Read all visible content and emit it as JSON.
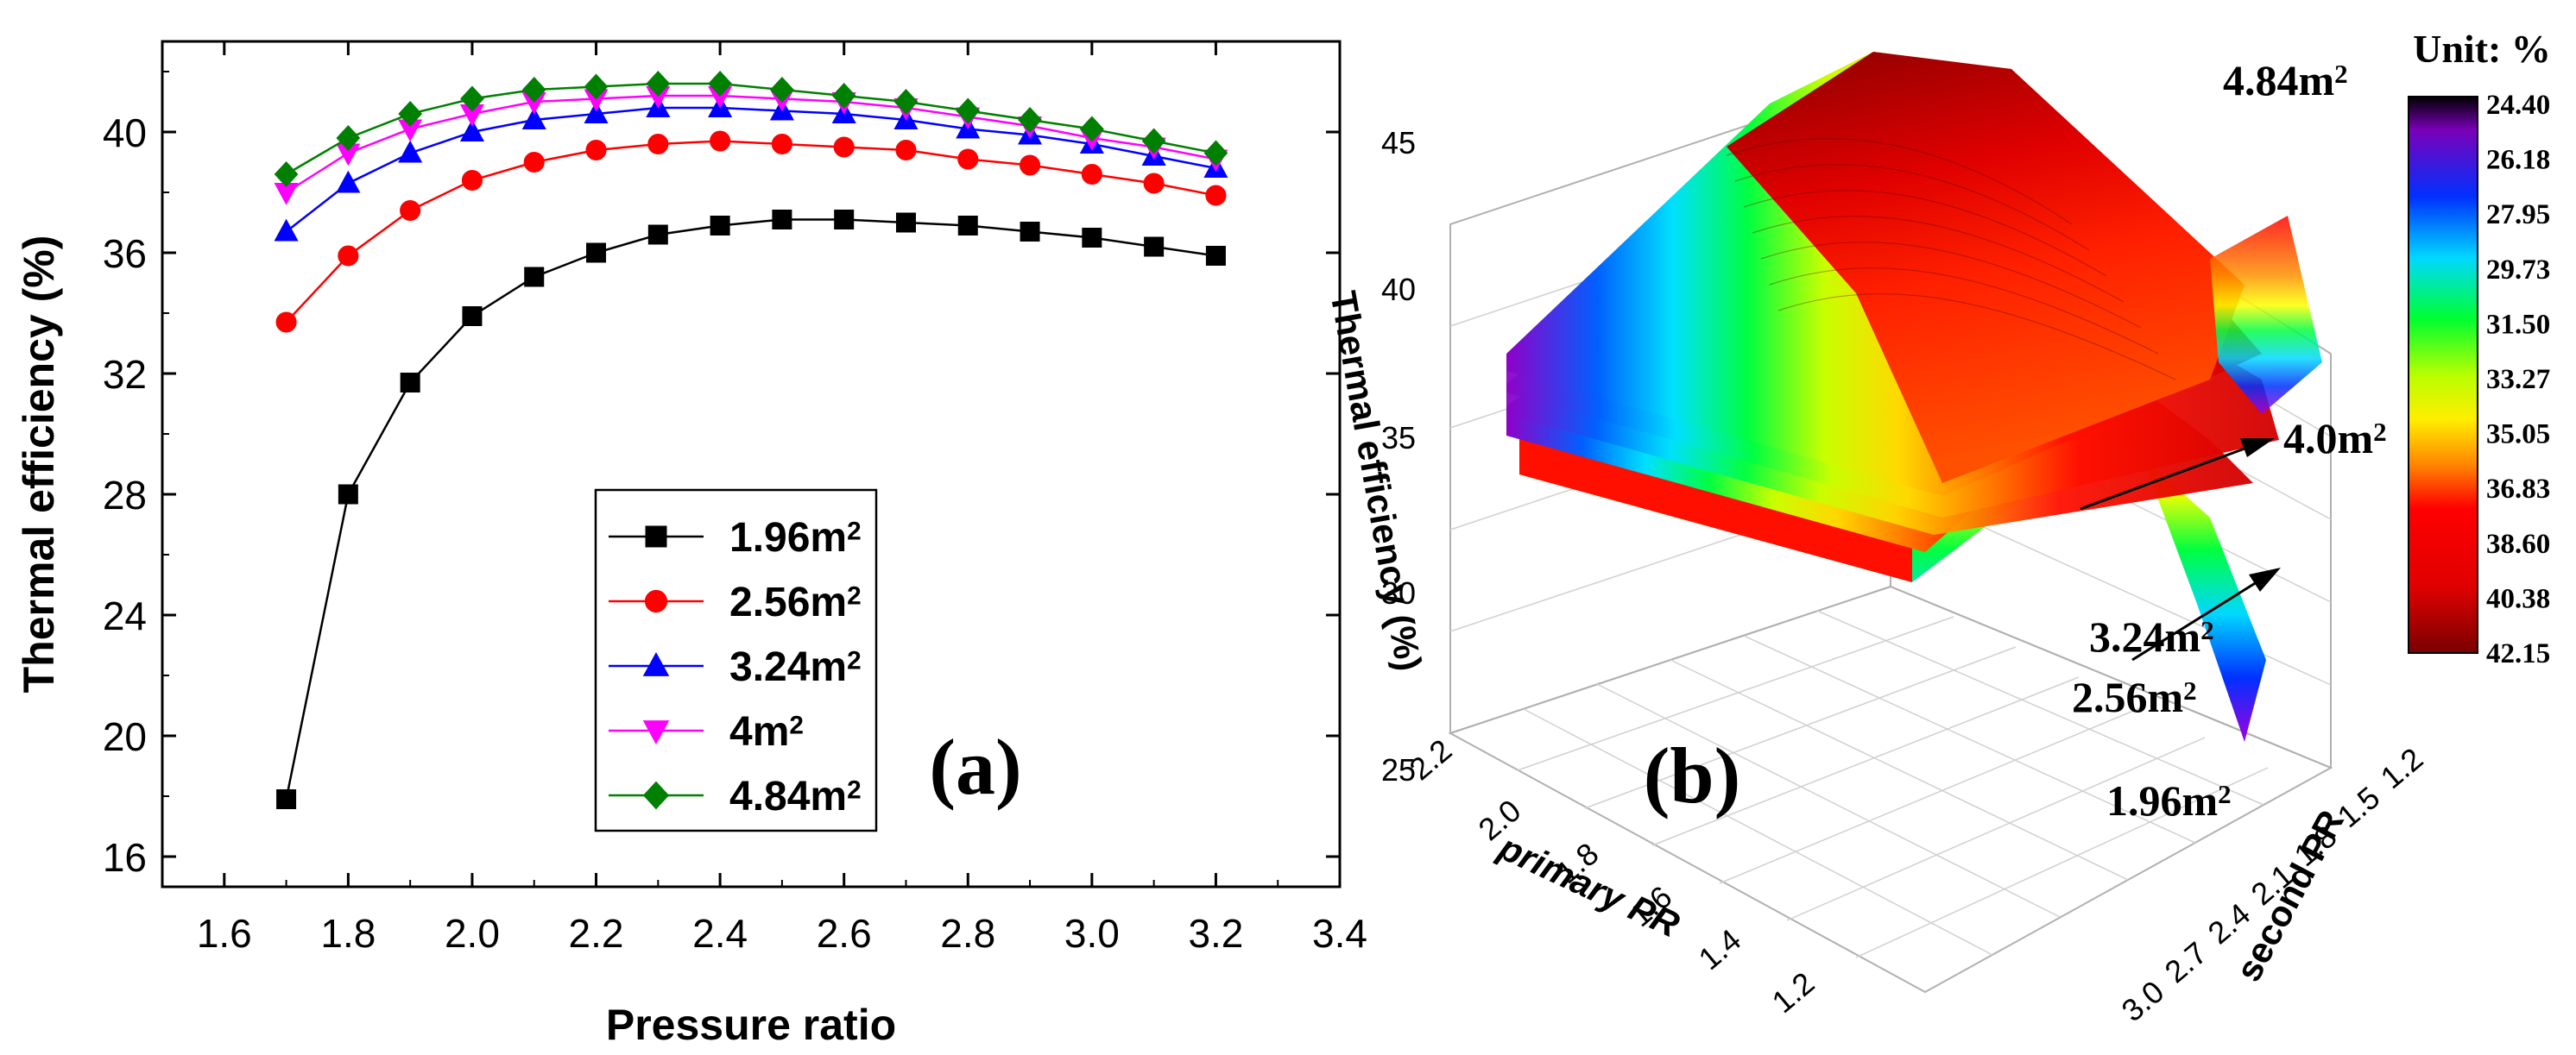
{
  "chart_data": [
    {
      "type": "line",
      "panel_label": "(a)",
      "xlabel": "Pressure ratio",
      "ylabel": "Thermal efficiency (%)",
      "xlim": [
        1.5,
        3.4
      ],
      "ylim": [
        15,
        43
      ],
      "xticks": [
        "1.6",
        "1.8",
        "2.0",
        "2.2",
        "2.4",
        "2.6",
        "2.8",
        "3.0",
        "3.2",
        "3.4"
      ],
      "yticks": [
        "16",
        "20",
        "24",
        "28",
        "32",
        "36",
        "40"
      ],
      "legend_position": "center",
      "x": [
        1.7,
        1.8,
        1.9,
        2.0,
        2.1,
        2.2,
        2.3,
        2.4,
        2.5,
        2.6,
        2.7,
        2.8,
        2.9,
        3.0,
        3.1,
        3.2
      ],
      "series": [
        {
          "name": "1.96m",
          "sup": "2",
          "color": "#000000",
          "marker": "square",
          "values": [
            17.9,
            28.0,
            31.7,
            33.9,
            35.2,
            36.0,
            36.6,
            36.9,
            37.1,
            37.1,
            37.0,
            36.9,
            36.7,
            36.5,
            36.2,
            35.9
          ]
        },
        {
          "name": "2.56m",
          "sup": "2",
          "color": "#ff0000",
          "marker": "circle",
          "values": [
            33.7,
            35.9,
            37.4,
            38.4,
            39.0,
            39.4,
            39.6,
            39.7,
            39.6,
            39.5,
            39.4,
            39.1,
            38.9,
            38.6,
            38.3,
            37.9
          ]
        },
        {
          "name": "3.24m",
          "sup": "2",
          "color": "#0000ff",
          "marker": "triangle-up",
          "values": [
            36.7,
            38.3,
            39.3,
            40.0,
            40.4,
            40.6,
            40.8,
            40.8,
            40.7,
            40.6,
            40.4,
            40.1,
            39.9,
            39.6,
            39.2,
            38.8
          ]
        },
        {
          "name": "4m",
          "sup": "2",
          "color": "#ff00ff",
          "marker": "triangle-down",
          "values": [
            38.0,
            39.3,
            40.1,
            40.6,
            41.0,
            41.1,
            41.2,
            41.2,
            41.1,
            41.0,
            40.8,
            40.5,
            40.2,
            39.8,
            39.5,
            39.1
          ]
        },
        {
          "name": "4.84m",
          "sup": "2",
          "color": "#008000",
          "marker": "diamond",
          "values": [
            38.6,
            39.8,
            40.6,
            41.1,
            41.4,
            41.5,
            41.6,
            41.6,
            41.4,
            41.2,
            41.0,
            40.7,
            40.4,
            40.1,
            39.7,
            39.3
          ]
        }
      ]
    },
    {
      "type": "surface3d",
      "panel_label": "(b)",
      "zlabel": "Thermal efficiency (%)",
      "xlabel": "primary PR",
      "ylabel": "second PR",
      "zticks": [
        "25",
        "30",
        "35",
        "40",
        "45"
      ],
      "xticks": [
        "2.2",
        "2.0",
        "1.8",
        "1.6",
        "1.4",
        "1.2"
      ],
      "yticks": [
        "1.2",
        "1.5",
        "1.8",
        "2.1",
        "2.4",
        "2.7",
        "3.0"
      ],
      "annotations": [
        {
          "text": "4.84m",
          "sup": "2"
        },
        {
          "text": "4.0m",
          "sup": "2"
        },
        {
          "text": "3.24m",
          "sup": "2"
        },
        {
          "text": "2.56m",
          "sup": "2"
        },
        {
          "text": "1.96m",
          "sup": "2"
        }
      ],
      "colorbar": {
        "title": "Unit: %",
        "labels": [
          "24.40",
          "26.18",
          "27.95",
          "29.73",
          "31.50",
          "33.27",
          "35.05",
          "36.83",
          "38.60",
          "40.38",
          "42.15"
        ],
        "colors": [
          "#000000",
          "#8a00c8",
          "#0030ff",
          "#00d0ff",
          "#00ff20",
          "#b0ff00",
          "#ffee00",
          "#ff8c00",
          "#ff0000",
          "#e00000",
          "#800000"
        ]
      }
    }
  ]
}
